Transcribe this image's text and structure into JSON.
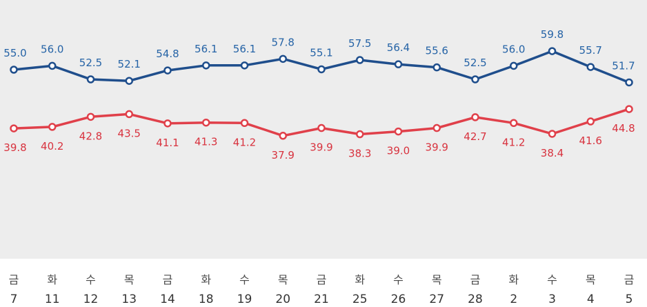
{
  "chart_data": {
    "type": "line",
    "title": "",
    "xlabel": "",
    "ylabel": "",
    "ylim": [
      20,
      70
    ],
    "grid": false,
    "categories": [
      {
        "day": "금",
        "date": "7"
      },
      {
        "day": "화",
        "date": "11"
      },
      {
        "day": "수",
        "date": "12"
      },
      {
        "day": "목",
        "date": "13"
      },
      {
        "day": "금",
        "date": "14"
      },
      {
        "day": "화",
        "date": "18"
      },
      {
        "day": "수",
        "date": "19"
      },
      {
        "day": "목",
        "date": "20"
      },
      {
        "day": "금",
        "date": "21"
      },
      {
        "day": "화",
        "date": "25"
      },
      {
        "day": "수",
        "date": "26"
      },
      {
        "day": "목",
        "date": "27"
      },
      {
        "day": "금",
        "date": "28"
      },
      {
        "day": "화",
        "date": "2"
      },
      {
        "day": "수",
        "date": "3"
      },
      {
        "day": "목",
        "date": "4"
      },
      {
        "day": "금",
        "date": "5"
      }
    ],
    "series": [
      {
        "name": "blue",
        "color": "#1f4e8c",
        "label_color": "#2563a6",
        "label_position": "above",
        "values": [
          55.0,
          56.0,
          52.5,
          52.1,
          54.8,
          56.1,
          56.1,
          57.8,
          55.1,
          57.5,
          56.4,
          55.6,
          52.5,
          56.0,
          59.8,
          55.7,
          51.7
        ],
        "labels": [
          "55.0",
          "56.0",
          "52.5",
          "52.1",
          "54.8",
          "56.1",
          "56.1",
          "57.8",
          "55.1",
          "57.5",
          "56.4",
          "55.6",
          "52.5",
          "56.0",
          "59.8",
          "55.7",
          "51.7"
        ]
      },
      {
        "name": "red",
        "color": "#e0404a",
        "label_color": "#d8323e",
        "label_position": "below",
        "values": [
          39.8,
          40.2,
          42.8,
          43.5,
          41.1,
          41.3,
          41.2,
          37.9,
          39.9,
          38.3,
          39.0,
          39.9,
          42.7,
          41.2,
          38.4,
          41.6,
          44.8
        ],
        "labels": [
          "39.8",
          "40.2",
          "42.8",
          "43.5",
          "41.1",
          "41.3",
          "41.2",
          "37.9",
          "39.9",
          "38.3",
          "39.0",
          "39.9",
          "42.7",
          "41.2",
          "38.4",
          "41.6",
          "44.8"
        ]
      }
    ]
  }
}
